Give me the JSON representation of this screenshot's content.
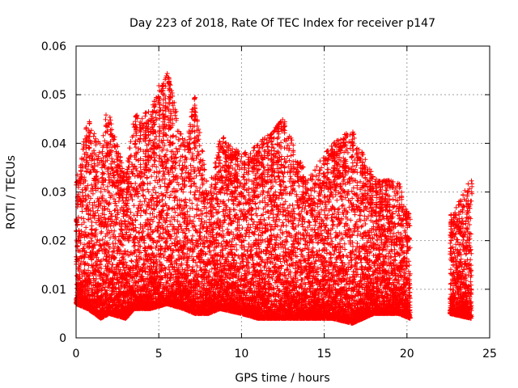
{
  "chart_data": {
    "type": "scatter",
    "title": "Day 223 of 2018, Rate Of TEC Index for receiver p147",
    "xlabel": "GPS time / hours",
    "ylabel": "ROTI / TECUs",
    "xlim": [
      0,
      25
    ],
    "ylim": [
      0,
      0.06
    ],
    "x_ticks": [
      "0",
      "5",
      "10",
      "15",
      "20",
      "25"
    ],
    "y_ticks": [
      "0",
      "0.01",
      "0.02",
      "0.03",
      "0.04",
      "0.05",
      "0.06"
    ],
    "grid": true,
    "marker": "+",
    "color": "#ff0000",
    "series": [
      {
        "name": "ROTI",
        "segments": [
          {
            "x_start": 0.0,
            "x_end": 20.2
          },
          {
            "x_start": 22.6,
            "x_end": 23.9
          }
        ],
        "envelope": [
          {
            "x": 0.0,
            "base": 0.007,
            "top": 0.032
          },
          {
            "x": 0.7,
            "base": 0.006,
            "top": 0.045
          },
          {
            "x": 1.5,
            "base": 0.004,
            "top": 0.04
          },
          {
            "x": 2.0,
            "base": 0.005,
            "top": 0.046
          },
          {
            "x": 3.0,
            "base": 0.004,
            "top": 0.033
          },
          {
            "x": 3.5,
            "base": 0.006,
            "top": 0.046
          },
          {
            "x": 4.5,
            "base": 0.006,
            "top": 0.047
          },
          {
            "x": 5.5,
            "base": 0.007,
            "top": 0.055
          },
          {
            "x": 6.5,
            "base": 0.006,
            "top": 0.04
          },
          {
            "x": 7.2,
            "base": 0.005,
            "top": 0.05
          },
          {
            "x": 8.0,
            "base": 0.005,
            "top": 0.03
          },
          {
            "x": 8.7,
            "base": 0.006,
            "top": 0.041
          },
          {
            "x": 10.0,
            "base": 0.005,
            "top": 0.038
          },
          {
            "x": 11.0,
            "base": 0.004,
            "top": 0.04
          },
          {
            "x": 12.5,
            "base": 0.004,
            "top": 0.045
          },
          {
            "x": 14.0,
            "base": 0.004,
            "top": 0.033
          },
          {
            "x": 15.5,
            "base": 0.004,
            "top": 0.04
          },
          {
            "x": 16.7,
            "base": 0.003,
            "top": 0.043
          },
          {
            "x": 18.0,
            "base": 0.005,
            "top": 0.033
          },
          {
            "x": 19.5,
            "base": 0.005,
            "top": 0.032
          },
          {
            "x": 20.2,
            "base": 0.004,
            "top": 0.025
          },
          {
            "x": 22.6,
            "base": 0.005,
            "top": 0.025
          },
          {
            "x": 23.9,
            "base": 0.004,
            "top": 0.033
          }
        ],
        "peaks": [
          {
            "x": 5.6,
            "y": 0.0547
          },
          {
            "x": 5.0,
            "y": 0.0525
          },
          {
            "x": 7.2,
            "y": 0.0503
          },
          {
            "x": 5.7,
            "y": 0.0495
          },
          {
            "x": 4.6,
            "y": 0.0472
          },
          {
            "x": 3.6,
            "y": 0.0462
          },
          {
            "x": 1.8,
            "y": 0.046
          },
          {
            "x": 0.8,
            "y": 0.045
          },
          {
            "x": 12.6,
            "y": 0.0445
          },
          {
            "x": 16.7,
            "y": 0.043
          },
          {
            "x": 8.9,
            "y": 0.0412
          },
          {
            "x": 11.0,
            "y": 0.04
          },
          {
            "x": 15.5,
            "y": 0.0395
          },
          {
            "x": 23.9,
            "y": 0.033
          }
        ]
      }
    ]
  }
}
